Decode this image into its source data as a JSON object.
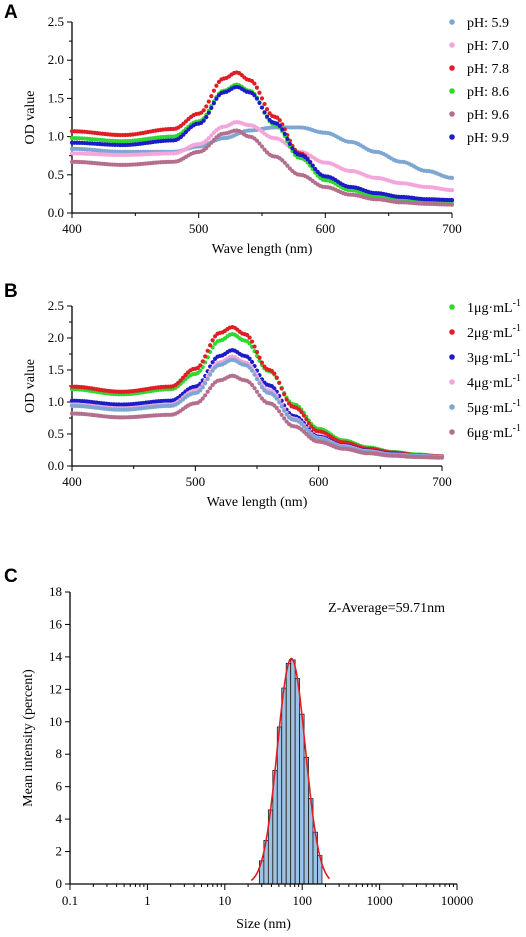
{
  "figure": {
    "panels": [
      "A",
      "B",
      "C"
    ]
  },
  "chart_data": [
    {
      "panel": "A",
      "type": "scatter",
      "xlabel": "Wave length (nm)",
      "ylabel": "OD value",
      "xlim": [
        400,
        700
      ],
      "ylim": [
        0,
        2.5
      ],
      "x_ticks": [
        "400",
        "500",
        "600",
        "700"
      ],
      "y_ticks": [
        "0.0",
        "0.5",
        "1.0",
        "1.5",
        "2.0",
        "2.5"
      ],
      "legend_position": "right",
      "series": [
        {
          "name": "pH: 5.9",
          "color": "#7ea6d3",
          "x": [
            400,
            440,
            480,
            500,
            520,
            540,
            560,
            580,
            600,
            620,
            640,
            660,
            680,
            700
          ],
          "y": [
            0.84,
            0.8,
            0.8,
            0.87,
            0.98,
            1.08,
            1.12,
            1.12,
            1.05,
            0.93,
            0.8,
            0.67,
            0.55,
            0.46
          ]
        },
        {
          "name": "pH: 7.0",
          "color": "#f4a6dc",
          "x": [
            400,
            440,
            480,
            500,
            520,
            530,
            540,
            560,
            580,
            600,
            620,
            640,
            660,
            680,
            700
          ],
          "y": [
            0.78,
            0.76,
            0.78,
            0.9,
            1.13,
            1.19,
            1.15,
            0.98,
            0.8,
            0.66,
            0.55,
            0.46,
            0.39,
            0.34,
            0.3
          ]
        },
        {
          "name": "pH: 7.8",
          "color": "#e01e25",
          "x": [
            400,
            440,
            480,
            500,
            520,
            530,
            540,
            560,
            580,
            600,
            620,
            640,
            660,
            680,
            700
          ],
          "y": [
            1.07,
            1.02,
            1.1,
            1.3,
            1.76,
            1.84,
            1.74,
            1.26,
            0.78,
            0.46,
            0.32,
            0.24,
            0.19,
            0.17,
            0.16
          ]
        },
        {
          "name": "pH: 8.6",
          "color": "#2ed82e",
          "x": [
            400,
            440,
            480,
            500,
            520,
            530,
            540,
            560,
            580,
            600,
            620,
            640,
            660,
            680,
            700
          ],
          "y": [
            0.98,
            0.94,
            1.0,
            1.2,
            1.6,
            1.68,
            1.6,
            1.16,
            0.72,
            0.43,
            0.3,
            0.22,
            0.18,
            0.16,
            0.15
          ]
        },
        {
          "name": "pH: 9.6",
          "color": "#b56f8e",
          "x": [
            400,
            440,
            480,
            500,
            520,
            530,
            540,
            560,
            580,
            600,
            620,
            640,
            660,
            680,
            700
          ],
          "y": [
            0.67,
            0.63,
            0.67,
            0.8,
            1.04,
            1.08,
            1.0,
            0.74,
            0.5,
            0.34,
            0.24,
            0.18,
            0.14,
            0.12,
            0.11
          ]
        },
        {
          "name": "pH: 9.9",
          "color": "#1c1cc8",
          "x": [
            400,
            440,
            480,
            500,
            520,
            530,
            540,
            560,
            580,
            600,
            620,
            640,
            660,
            680,
            700
          ],
          "y": [
            0.92,
            0.89,
            0.95,
            1.17,
            1.58,
            1.65,
            1.58,
            1.18,
            0.76,
            0.48,
            0.34,
            0.26,
            0.21,
            0.18,
            0.17
          ]
        }
      ]
    },
    {
      "panel": "B",
      "type": "scatter",
      "xlabel": "Wave length (nm)",
      "ylabel": "OD value",
      "xlim": [
        400,
        700
      ],
      "ylim": [
        0,
        2.5
      ],
      "x_ticks": [
        "400",
        "500",
        "600",
        "700"
      ],
      "y_ticks": [
        "0.0",
        "0.5",
        "1.0",
        "1.5",
        "2.0",
        "2.5"
      ],
      "legend_position": "right",
      "series": [
        {
          "name": "1μg·mL",
          "sup": "-1",
          "color": "#2ed82e",
          "x": [
            400,
            440,
            480,
            500,
            520,
            530,
            540,
            560,
            580,
            600,
            620,
            640,
            660,
            680,
            700
          ],
          "y": [
            1.2,
            1.12,
            1.2,
            1.44,
            1.96,
            2.06,
            1.96,
            1.48,
            0.96,
            0.58,
            0.4,
            0.29,
            0.22,
            0.18,
            0.15
          ]
        },
        {
          "name": "2μg·mL",
          "sup": "-1",
          "color": "#e01e25",
          "x": [
            400,
            440,
            480,
            500,
            520,
            530,
            540,
            560,
            580,
            600,
            620,
            640,
            660,
            680,
            700
          ],
          "y": [
            1.24,
            1.16,
            1.24,
            1.52,
            2.08,
            2.17,
            2.06,
            1.5,
            0.92,
            0.54,
            0.37,
            0.27,
            0.21,
            0.17,
            0.15
          ]
        },
        {
          "name": "3μg·mL",
          "sup": "-1",
          "color": "#1c1cc8",
          "x": [
            400,
            440,
            480,
            500,
            520,
            530,
            540,
            560,
            580,
            600,
            620,
            640,
            660,
            680,
            700
          ],
          "y": [
            1.02,
            0.96,
            1.02,
            1.24,
            1.72,
            1.81,
            1.72,
            1.26,
            0.78,
            0.46,
            0.32,
            0.24,
            0.19,
            0.16,
            0.14
          ]
        },
        {
          "name": "4μg·mL",
          "sup": "-1",
          "color": "#f4a6dc",
          "x": [
            400,
            440,
            480,
            500,
            520,
            530,
            540,
            560,
            580,
            600,
            620,
            640,
            660,
            680,
            700
          ],
          "y": [
            0.96,
            0.9,
            0.96,
            1.18,
            1.62,
            1.71,
            1.62,
            1.18,
            0.74,
            0.44,
            0.31,
            0.23,
            0.18,
            0.16,
            0.14
          ]
        },
        {
          "name": "5μg·mL",
          "sup": "-1",
          "color": "#7ea6d3",
          "x": [
            400,
            440,
            480,
            500,
            520,
            530,
            540,
            560,
            580,
            600,
            620,
            640,
            660,
            680,
            700
          ],
          "y": [
            0.94,
            0.88,
            0.94,
            1.14,
            1.58,
            1.66,
            1.58,
            1.14,
            0.72,
            0.43,
            0.3,
            0.22,
            0.18,
            0.16,
            0.14
          ]
        },
        {
          "name": "6μg·mL",
          "sup": "-1",
          "color": "#b56f8e",
          "x": [
            400,
            440,
            480,
            500,
            520,
            530,
            540,
            560,
            580,
            600,
            620,
            640,
            660,
            680,
            700
          ],
          "y": [
            0.82,
            0.76,
            0.8,
            0.98,
            1.34,
            1.41,
            1.34,
            0.98,
            0.62,
            0.38,
            0.27,
            0.2,
            0.16,
            0.14,
            0.13
          ]
        }
      ]
    },
    {
      "panel": "C",
      "type": "bar",
      "xlabel": "Size (nm)",
      "ylabel": "Mean intensity (percent)",
      "x_scale": "log",
      "xlim": [
        0.1,
        10000
      ],
      "ylim": [
        0,
        18
      ],
      "x_ticks": [
        "0.1",
        "1",
        "10",
        "100",
        "1000",
        "10000"
      ],
      "y_ticks": [
        "0",
        "2",
        "4",
        "6",
        "8",
        "10",
        "12",
        "14",
        "16",
        "18"
      ],
      "annotation": "Z-Average=59.71nm",
      "bar_color": "#9cc3e6",
      "fit_color": "#e01e25",
      "log_mean": 1.86,
      "log_sd": 0.18,
      "peak": 13.9,
      "bin_range": [
        28,
        180
      ]
    }
  ]
}
